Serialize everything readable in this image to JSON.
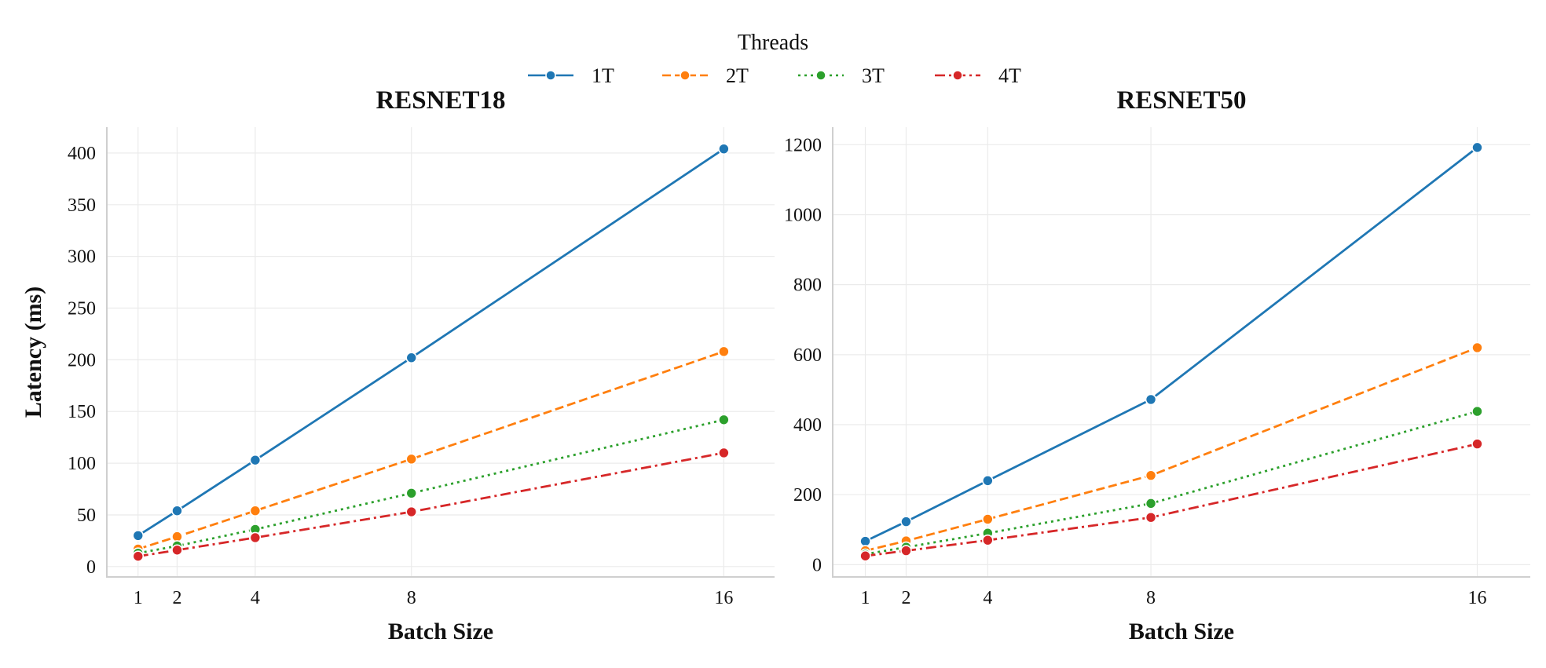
{
  "legend": {
    "title": "Threads",
    "entries": [
      {
        "name": "1T",
        "color": "#1f77b4",
        "dash": "solid"
      },
      {
        "name": "2T",
        "color": "#ff7f0e",
        "dash": "dashed"
      },
      {
        "name": "3T",
        "color": "#2ca02c",
        "dash": "dotted"
      },
      {
        "name": "4T",
        "color": "#d62728",
        "dash": "dashdot"
      }
    ]
  },
  "chart_data": [
    {
      "type": "line",
      "title": "RESNET18",
      "xlabel": "Batch Size",
      "ylabel": "Latency (ms)",
      "x": [
        1,
        2,
        4,
        8,
        16
      ],
      "xticks": [
        1,
        2,
        4,
        8,
        16
      ],
      "yticks": [
        0,
        50,
        100,
        150,
        200,
        250,
        300,
        350,
        400
      ],
      "xlim": [
        0.2,
        17.3
      ],
      "ylim": [
        -10,
        425
      ],
      "grid": true,
      "series": [
        {
          "name": "1T",
          "values": [
            30,
            54,
            103,
            202,
            404
          ]
        },
        {
          "name": "2T",
          "values": [
            17,
            29,
            54,
            104,
            208
          ]
        },
        {
          "name": "3T",
          "values": [
            13,
            20,
            36,
            71,
            142
          ]
        },
        {
          "name": "4T",
          "values": [
            10,
            16,
            28,
            53,
            110
          ]
        }
      ]
    },
    {
      "type": "line",
      "title": "RESNET50",
      "xlabel": "Batch Size",
      "ylabel": "",
      "x": [
        1,
        2,
        4,
        8,
        16
      ],
      "xticks": [
        1,
        2,
        4,
        8,
        16
      ],
      "yticks": [
        0,
        200,
        400,
        600,
        800,
        1000,
        1200
      ],
      "xlim": [
        0.2,
        17.3
      ],
      "ylim": [
        -35,
        1250
      ],
      "grid": true,
      "series": [
        {
          "name": "1T",
          "values": [
            67,
            123,
            240,
            472,
            1192
          ]
        },
        {
          "name": "2T",
          "values": [
            40,
            68,
            130,
            255,
            620
          ]
        },
        {
          "name": "3T",
          "values": [
            30,
            50,
            90,
            175,
            438
          ]
        },
        {
          "name": "4T",
          "values": [
            25,
            40,
            70,
            135,
            345
          ]
        }
      ]
    }
  ]
}
